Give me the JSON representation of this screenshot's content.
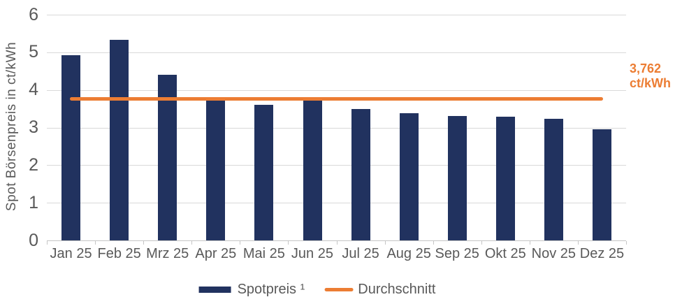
{
  "chart_data": {
    "type": "bar",
    "title": "",
    "xlabel": "",
    "ylabel": "Spot Börsenpreis in ct/kWh",
    "ylim": [
      0,
      6
    ],
    "yticks": [
      0,
      1,
      2,
      3,
      4,
      5,
      6
    ],
    "grid": true,
    "legend_position": "bottom",
    "categories": [
      "Jan 25",
      "Feb 25",
      "Mrz 25",
      "Apr 25",
      "Mai 25",
      "Jun 25",
      "Jul 25",
      "Aug 25",
      "Sep 25",
      "Okt 25",
      "Nov 25",
      "Dez 25"
    ],
    "series": [
      {
        "name": "Spotpreis ¹",
        "type": "bar",
        "color": "#21325f",
        "values": [
          4.92,
          5.34,
          4.4,
          3.73,
          3.6,
          3.73,
          3.5,
          3.38,
          3.3,
          3.29,
          3.24,
          2.96
        ]
      },
      {
        "name": "Durchschnitt",
        "type": "line",
        "color": "#ec7d33",
        "value": 3.762
      }
    ],
    "annotation": {
      "text": "3,762\nct/kWh",
      "color": "#ec7d33"
    },
    "axis_text_color": "#595959",
    "gridline_color": "#d9d9d9"
  }
}
